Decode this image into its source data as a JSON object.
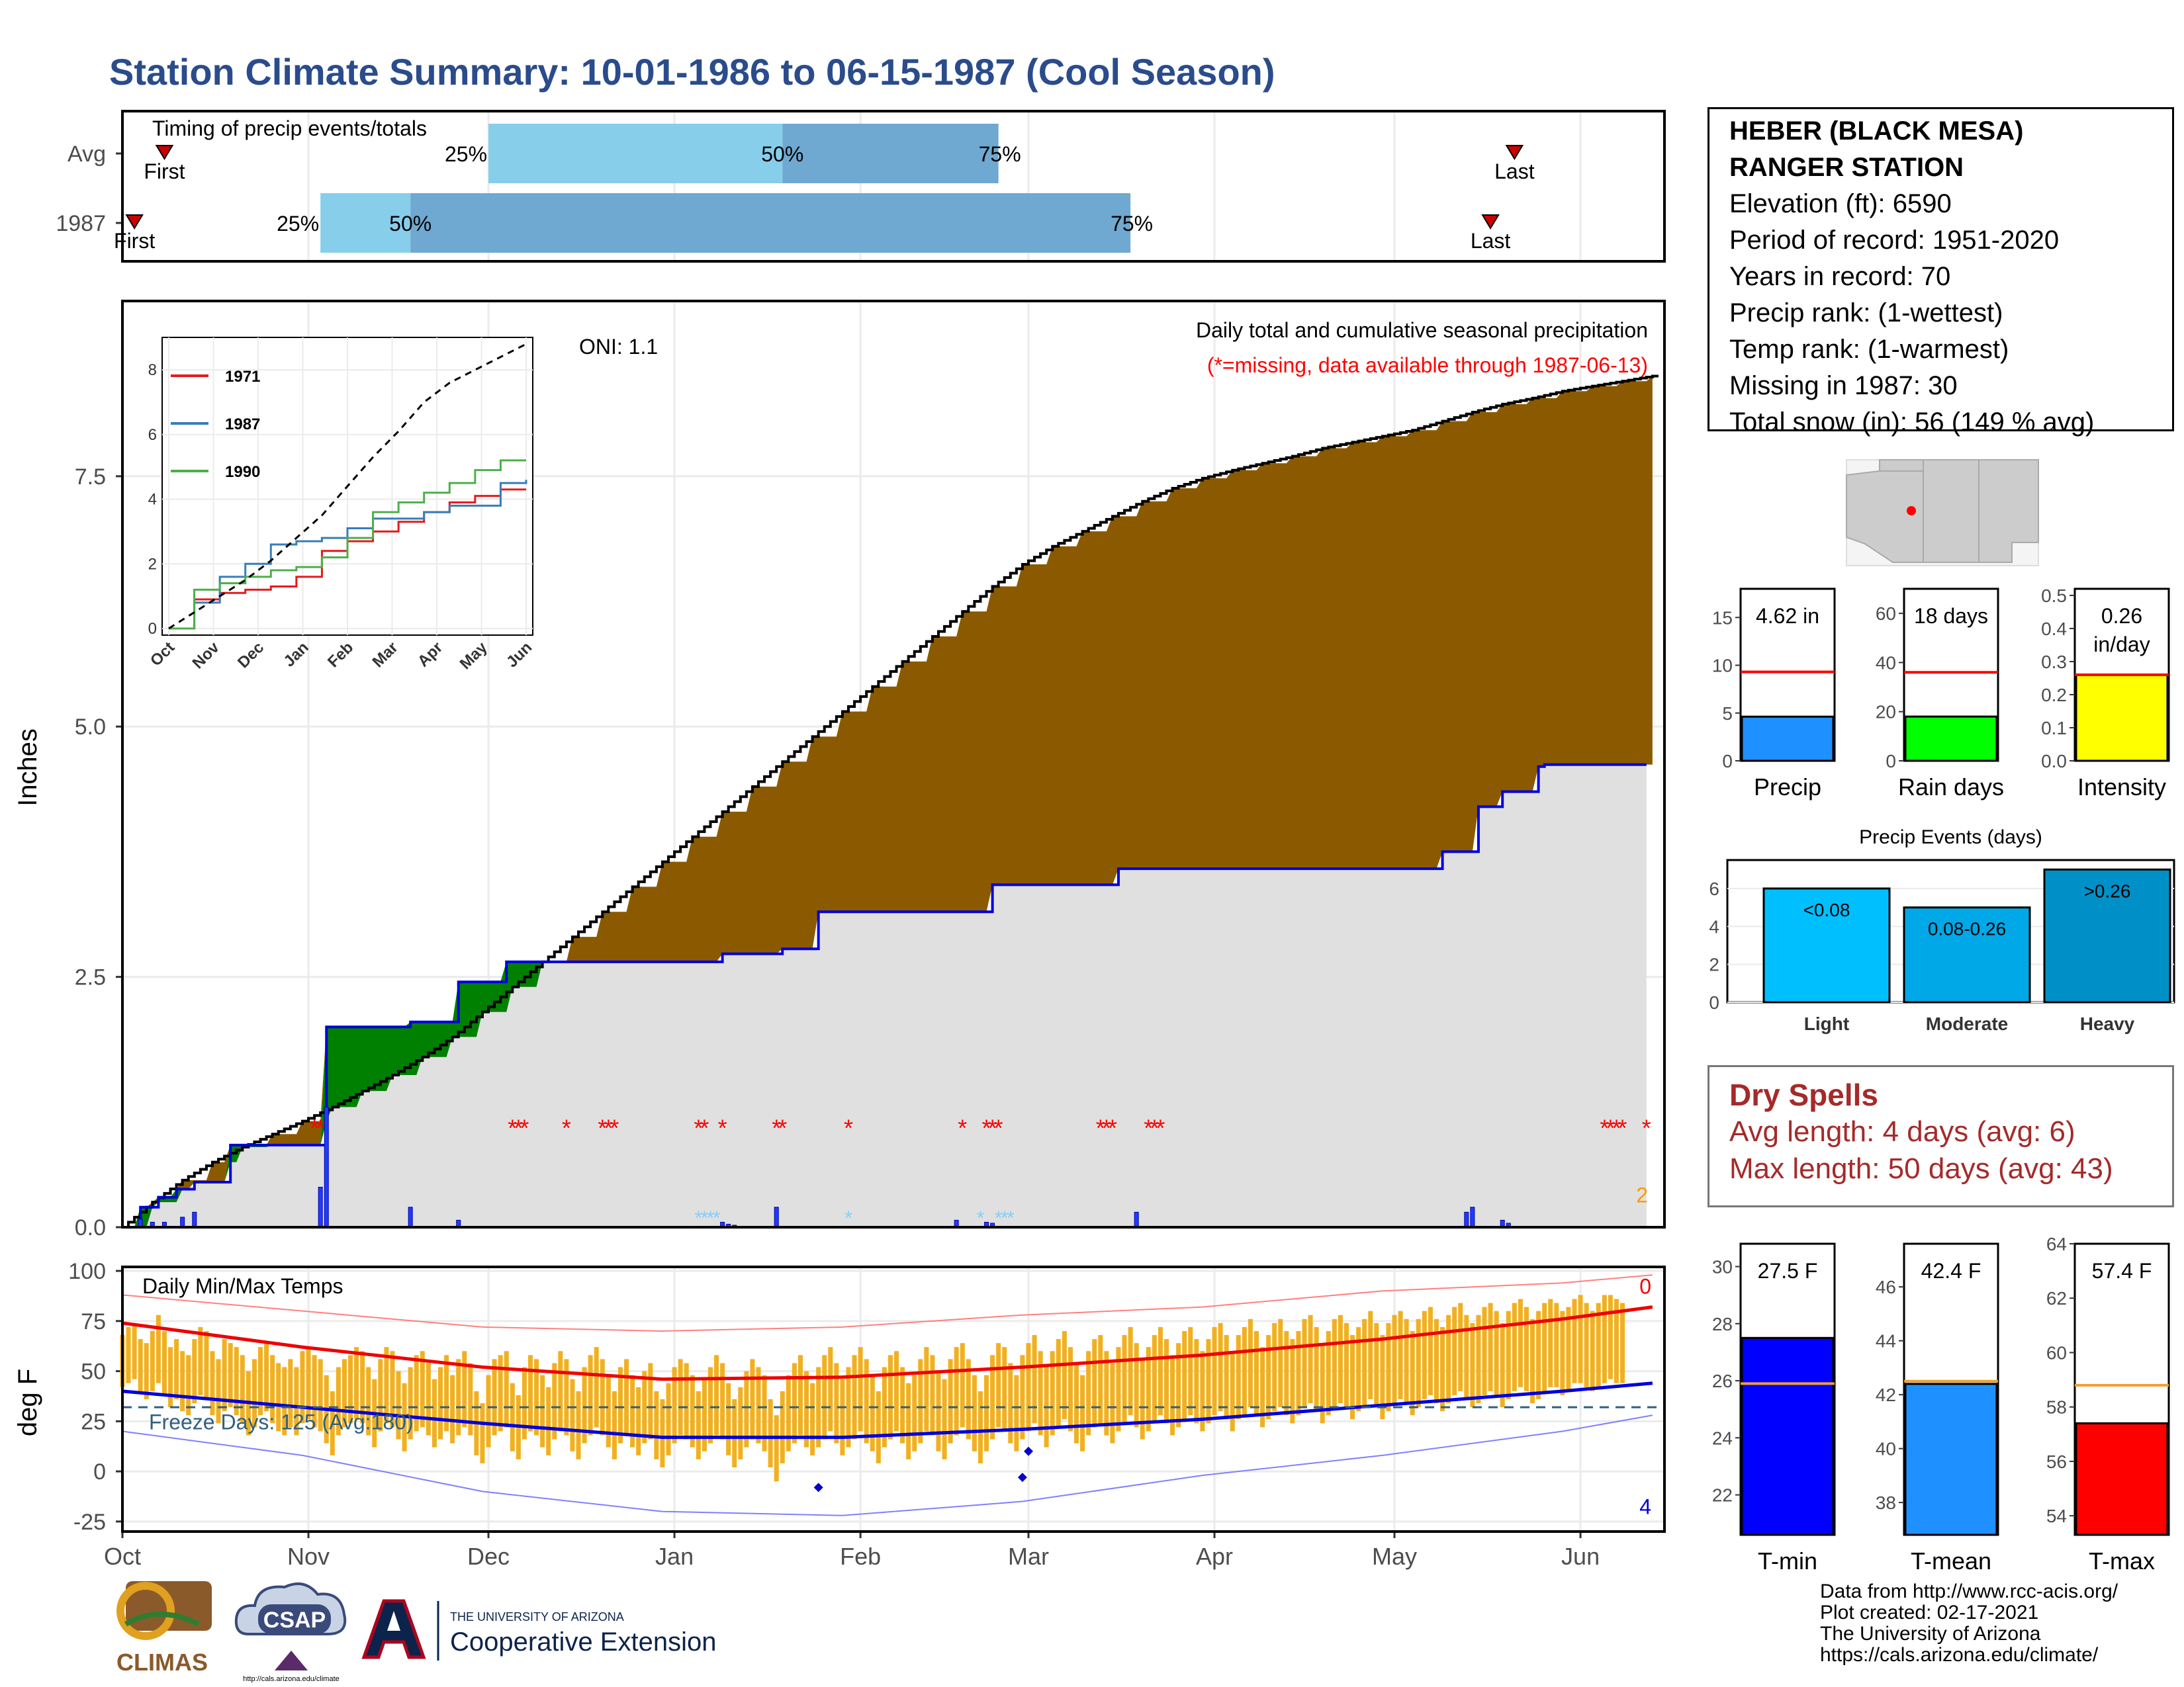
{
  "title": "Station Climate Summary: 10-01-1986 to 06-15-1987 (Cool Season)",
  "station": {
    "name_line1": "HEBER (BLACK MESA)",
    "name_line2": "RANGER STATION",
    "elevation": "Elevation (ft): 6590",
    "period": "Period of record: 1951-2020",
    "years": "Years in record: 70",
    "precip_rank": "Precip rank:  (1-wettest)",
    "temp_rank": "Temp rank:  (1-warmest)",
    "missing": "Missing in 1987: 30",
    "snow": "Total snow (in): 56 (149 % avg)"
  },
  "dry_spells": {
    "title": "Dry Spells",
    "avg": "Avg length: 4 days (avg: 6)",
    "max": "Max length: 50 days (avg: 43)"
  },
  "credits": {
    "line1": "Data from http://www.rcc-acis.org/",
    "line2": "Plot created: 02-17-2021",
    "line3": "The University of Arizona",
    "line4": "https://cals.arizona.edu/climate/"
  },
  "logos": {
    "climas": "CLIMAS",
    "csap": "CSAP",
    "csap_url": "http://cals.arizona.edu/climate",
    "ua_top": "THE UNIVERSITY OF ARIZONA",
    "ua_bottom": "Cooperative Extension"
  },
  "colors": {
    "avg_fill": "#8b5a00",
    "year_line": "#0000dd",
    "above_fill": "#008000",
    "missing": "#ff0000",
    "tmin": "#0000ff",
    "tmean": "#1e90ff",
    "tmax": "#ff0000",
    "precip_bar": "#1e90ff",
    "raindays_bar": "#00ff00",
    "intensity_bar": "#ffff00"
  },
  "chart_data": [
    {
      "type": "bar",
      "id": "timing",
      "title": "Timing of precip events/totals",
      "rows": [
        {
          "label": "Avg",
          "first": "10-08",
          "q25": "12-01",
          "q50": "01-19",
          "q75": "02-24",
          "last": "05-21"
        },
        {
          "label": "1987",
          "first": "10-03",
          "q25": "11-03",
          "q50": "11-18",
          "q75": "03-18",
          "last": "05-17"
        }
      ],
      "marker_labels": {
        "first": "First",
        "last": "Last",
        "q25": "25%",
        "q50": "50%",
        "q75": "75%"
      }
    },
    {
      "type": "area",
      "id": "main_precip",
      "title": "Daily total and cumulative seasonal precipitation",
      "subtitle": "(*=missing, data available through 1987-06-13)",
      "oni": "ONI: 1.1",
      "ylabel": "Inches",
      "yticks": [
        "0.0",
        "2.5",
        "5.0",
        "7.5"
      ],
      "ylim": [
        0,
        9.25
      ],
      "xticks": [
        "Oct",
        "Nov",
        "Dec",
        "Jan",
        "Feb",
        "Mar",
        "Apr",
        "May",
        "Jun"
      ],
      "avg_cumulative": {
        "day": [
          0,
          5,
          10,
          15,
          20,
          25,
          30,
          35,
          40,
          45,
          50,
          55,
          60,
          65,
          70,
          75,
          80,
          85,
          90,
          95,
          100,
          105,
          110,
          115,
          120,
          125,
          130,
          135,
          140,
          145,
          150,
          155,
          160,
          165,
          170,
          175,
          180,
          185,
          190,
          195,
          200,
          205,
          210,
          215,
          220,
          225,
          230,
          235,
          240,
          245,
          250,
          255
        ],
        "inches": [
          0.0,
          0.25,
          0.47,
          0.65,
          0.8,
          0.93,
          1.06,
          1.2,
          1.36,
          1.52,
          1.7,
          1.9,
          2.15,
          2.4,
          2.65,
          2.9,
          3.15,
          3.4,
          3.65,
          3.9,
          4.15,
          4.4,
          4.65,
          4.9,
          5.15,
          5.4,
          5.65,
          5.9,
          6.15,
          6.4,
          6.62,
          6.8,
          6.95,
          7.1,
          7.25,
          7.38,
          7.48,
          7.56,
          7.63,
          7.7,
          7.78,
          7.84,
          7.9,
          7.96,
          8.05,
          8.14,
          8.22,
          8.28,
          8.35,
          8.4,
          8.45,
          8.5
        ]
      },
      "year_cumulative": {
        "day": [
          0,
          3,
          6,
          9,
          12,
          18,
          25,
          33,
          34,
          47,
          48,
          48,
          56,
          58,
          64,
          75,
          100,
          110,
          115,
          116,
          145,
          165,
          166,
          200,
          220,
          225,
          226,
          230,
          233,
          236,
          237,
          254
        ],
        "inches": [
          0.0,
          0.2,
          0.3,
          0.38,
          0.45,
          0.82,
          0.82,
          0.82,
          2.0,
          2.0,
          2.05,
          2.05,
          2.45,
          2.45,
          2.65,
          2.65,
          2.73,
          2.78,
          2.78,
          3.15,
          3.42,
          3.42,
          3.58,
          3.58,
          3.75,
          3.75,
          4.2,
          4.35,
          4.35,
          4.6,
          4.62,
          4.62
        ]
      },
      "daily_bars": {
        "day": [
          3,
          5,
          7,
          10,
          12,
          33,
          34,
          48,
          56,
          100,
          101,
          102,
          109,
          139,
          144,
          145,
          169,
          224,
          225,
          230,
          231
        ],
        "inches": [
          0.08,
          0.05,
          0.05,
          0.1,
          0.15,
          0.4,
          1.2,
          0.2,
          0.07,
          0.05,
          0.03,
          0.02,
          0.2,
          0.07,
          0.05,
          0.04,
          0.15,
          0.15,
          0.2,
          0.07,
          0.04
        ]
      },
      "missing_days": [
        32,
        33,
        65,
        66,
        67,
        74,
        80,
        81,
        82,
        96,
        97,
        100,
        109,
        110,
        121,
        140,
        144,
        145,
        146,
        163,
        164,
        165,
        171,
        172,
        173,
        247,
        248,
        249,
        250,
        254
      ],
      "snow_days": [
        96,
        97,
        98,
        99,
        121,
        143,
        146,
        147,
        148
      ],
      "side_number": "2"
    },
    {
      "type": "line",
      "id": "inset",
      "series": [
        {
          "name": "1971",
          "color": "#e41a1c",
          "values": [
            0,
            0.9,
            1.1,
            1.2,
            1.3,
            1.6,
            2.4,
            2.7,
            3.0,
            3.3,
            3.6,
            3.9,
            4.1,
            4.3,
            4.3
          ]
        },
        {
          "name": "1987",
          "color": "#377eb8",
          "values": [
            0,
            0.8,
            1.6,
            2.0,
            2.6,
            2.7,
            2.8,
            3.1,
            3.4,
            3.4,
            3.6,
            3.8,
            3.8,
            4.5,
            4.6
          ]
        },
        {
          "name": "1990",
          "color": "#4daf4a",
          "values": [
            0,
            1.2,
            1.4,
            1.6,
            1.8,
            1.9,
            2.2,
            2.8,
            3.6,
            3.9,
            4.2,
            4.5,
            4.9,
            5.2,
            5.2
          ]
        },
        {
          "name": "avg",
          "color": "#000000",
          "values": [
            0,
            0.5,
            1.0,
            1.5,
            2.1,
            2.8,
            3.5,
            4.4,
            5.3,
            6.1,
            7.0,
            7.6,
            8.0,
            8.4,
            8.8
          ]
        }
      ],
      "xticks": [
        "Oct",
        "Nov",
        "Dec",
        "Jan",
        "Feb",
        "Mar",
        "Apr",
        "May",
        "Jun"
      ],
      "yticks": [
        "0",
        "2",
        "4",
        "6",
        "8"
      ],
      "ylim": [
        0,
        8.8
      ]
    },
    {
      "type": "line",
      "id": "temps",
      "title": "Daily Min/Max Temps",
      "ylabel": "deg F",
      "yticks": [
        "-25",
        "0",
        "25",
        "50",
        "75",
        "100"
      ],
      "ylim": [
        -30,
        102
      ],
      "xticks": [
        "Oct",
        "Nov",
        "Dec",
        "Jan",
        "Feb",
        "Mar",
        "Apr",
        "May",
        "Jun"
      ],
      "freeze_label": "Freeze Days: 125 (Avg:180)",
      "freeze_line": 32,
      "avg_max": {
        "day": [
          0,
          30,
          60,
          90,
          120,
          150,
          180,
          210,
          240,
          255
        ],
        "f": [
          74,
          62,
          52,
          46,
          47,
          52,
          58,
          66,
          76,
          82
        ]
      },
      "avg_min": {
        "day": [
          0,
          30,
          60,
          90,
          120,
          150,
          180,
          210,
          240,
          255
        ],
        "f": [
          40,
          32,
          24,
          17,
          17,
          21,
          26,
          33,
          40,
          44
        ]
      },
      "record_max": {
        "day": [
          0,
          30,
          60,
          90,
          120,
          150,
          180,
          210,
          240,
          255
        ],
        "f": [
          88,
          80,
          72,
          70,
          72,
          78,
          82,
          90,
          94,
          98
        ]
      },
      "record_min": {
        "day": [
          0,
          30,
          60,
          90,
          120,
          150,
          180,
          210,
          240,
          255
        ],
        "f": [
          20,
          8,
          -10,
          -20,
          -22,
          -15,
          -2,
          8,
          20,
          28
        ]
      },
      "daily_max": [
        68,
        72,
        74,
        66,
        64,
        70,
        78,
        70,
        62,
        66,
        60,
        58,
        66,
        72,
        70,
        60,
        56,
        66,
        64,
        62,
        58,
        50,
        56,
        62,
        64,
        58,
        54,
        52,
        56,
        52,
        60,
        62,
        58,
        56,
        48,
        40,
        52,
        56,
        58,
        62,
        60,
        52,
        46,
        56,
        62,
        60,
        50,
        44,
        52,
        58,
        60,
        54,
        46,
        52,
        58,
        48,
        56,
        60,
        54,
        40,
        34,
        48,
        56,
        58,
        60,
        44,
        38,
        52,
        58,
        56,
        48,
        42,
        54,
        60,
        56,
        46,
        40,
        52,
        58,
        62,
        56,
        48,
        40,
        52,
        56,
        48,
        42,
        50,
        54,
        40,
        36,
        44,
        52,
        56,
        54,
        48,
        40,
        46,
        52,
        58,
        54,
        44,
        36,
        42,
        50,
        56,
        52,
        48,
        36,
        28,
        40,
        48,
        54,
        58,
        50,
        44,
        52,
        58,
        62,
        54,
        46,
        52,
        58,
        62,
        56,
        48,
        40,
        52,
        58,
        60,
        52,
        44,
        48,
        56,
        62,
        58,
        50,
        46,
        56,
        62,
        64,
        56,
        48,
        40,
        48,
        58,
        64,
        62,
        54,
        48,
        58,
        64,
        68,
        60,
        52,
        60,
        66,
        70,
        62,
        54,
        48,
        60,
        66,
        68,
        60,
        54,
        62,
        68,
        72,
        64,
        56,
        62,
        68,
        72,
        66,
        58,
        64,
        70,
        72,
        66,
        60,
        66,
        72,
        74,
        68,
        60,
        68,
        72,
        76,
        70,
        62,
        68,
        74,
        76,
        70,
        66,
        70,
        76,
        78,
        72,
        64,
        70,
        76,
        78,
        74,
        68,
        72,
        76,
        80,
        74,
        68,
        74,
        78,
        80,
        76,
        70,
        76,
        80,
        82,
        76,
        72,
        78,
        82,
        84,
        78,
        74,
        78,
        82,
        84,
        80,
        74,
        80,
        84,
        86,
        82,
        76,
        80,
        84,
        86,
        84,
        80,
        82,
        86,
        88,
        84,
        80,
        84,
        88,
        88,
        86,
        84
      ],
      "daily_min": [
        42,
        44,
        46,
        40,
        36,
        40,
        44,
        38,
        32,
        36,
        30,
        28,
        34,
        38,
        36,
        28,
        24,
        30,
        32,
        28,
        24,
        18,
        22,
        28,
        30,
        24,
        20,
        18,
        22,
        18,
        24,
        26,
        22,
        20,
        14,
        8,
        18,
        22,
        24,
        26,
        24,
        18,
        12,
        20,
        24,
        22,
        16,
        10,
        16,
        20,
        22,
        18,
        12,
        16,
        20,
        14,
        18,
        22,
        18,
        8,
        4,
        12,
        18,
        20,
        22,
        10,
        6,
        16,
        20,
        18,
        12,
        8,
        16,
        20,
        18,
        10,
        6,
        14,
        18,
        22,
        18,
        12,
        6,
        14,
        18,
        12,
        8,
        14,
        16,
        6,
        2,
        8,
        14,
        18,
        16,
        12,
        6,
        10,
        14,
        18,
        16,
        8,
        2,
        6,
        12,
        16,
        14,
        10,
        2,
        -5,
        4,
        10,
        14,
        18,
        12,
        8,
        12,
        16,
        20,
        14,
        8,
        12,
        16,
        20,
        14,
        10,
        4,
        12,
        16,
        20,
        14,
        6,
        10,
        14,
        20,
        18,
        10,
        6,
        14,
        18,
        22,
        16,
        10,
        4,
        10,
        16,
        22,
        20,
        14,
        10,
        16,
        20,
        24,
        18,
        12,
        18,
        22,
        26,
        20,
        14,
        10,
        18,
        22,
        24,
        18,
        14,
        20,
        24,
        28,
        22,
        16,
        20,
        24,
        28,
        24,
        18,
        22,
        26,
        28,
        24,
        20,
        24,
        28,
        30,
        26,
        20,
        26,
        28,
        32,
        28,
        22,
        26,
        30,
        32,
        28,
        24,
        28,
        32,
        34,
        30,
        24,
        28,
        32,
        34,
        32,
        26,
        30,
        32,
        36,
        32,
        26,
        30,
        34,
        36,
        34,
        28,
        32,
        36,
        38,
        34,
        30,
        34,
        38,
        40,
        36,
        32,
        34,
        38,
        40,
        38,
        32,
        36,
        40,
        42,
        40,
        34,
        36,
        40,
        42,
        42,
        38,
        40,
        44,
        44,
        42,
        40,
        42,
        44,
        46,
        44,
        44
      ],
      "record_lows": [
        {
          "day": 116,
          "f": -8
        },
        {
          "day": 150,
          "f": -3
        },
        {
          "day": 151,
          "f": 10
        }
      ],
      "top_number": "0",
      "bottom_number": "4"
    },
    {
      "type": "bar",
      "id": "precip_summary",
      "panels": [
        {
          "name": "Precip",
          "label": "4.62 in",
          "value": 4.62,
          "avg": 9.3,
          "ylim": [
            0,
            18
          ],
          "yticks": [
            "0",
            "5",
            "10",
            "15"
          ],
          "color": "#1e90ff"
        },
        {
          "name": "Rain days",
          "label": "18 days",
          "value": 18,
          "avg": 36,
          "ylim": [
            0,
            70
          ],
          "yticks": [
            "0",
            "20",
            "40",
            "60"
          ],
          "color": "#00ff00"
        },
        {
          "name": "Intensity",
          "label_line1": "0.26",
          "label_line2": "in/day",
          "value": 0.26,
          "avg": 0.26,
          "ylim": [
            0,
            0.52
          ],
          "yticks": [
            "0.0",
            "0.1",
            "0.2",
            "0.3",
            "0.4",
            "0.5"
          ],
          "color": "#ffff00"
        }
      ]
    },
    {
      "type": "bar",
      "id": "precip_events",
      "title": "Precip Events (days)",
      "categories": [
        "Light",
        "Moderate",
        "Heavy"
      ],
      "bar_labels": [
        "<0.08",
        "0.08-0.26",
        ">0.26"
      ],
      "values": [
        6,
        5,
        7
      ],
      "ylim": [
        0,
        7.5
      ],
      "yticks": [
        "0",
        "2",
        "4",
        "6"
      ]
    },
    {
      "type": "bar",
      "id": "temp_summary",
      "panels": [
        {
          "name": "T-min",
          "label": "27.5 F",
          "value": 27.5,
          "avg": 25.9,
          "ylim": [
            20.6,
            30.8
          ],
          "yticks": [
            "22",
            "24",
            "26",
            "28",
            "30"
          ],
          "color": "#0000ff"
        },
        {
          "name": "T-mean",
          "label": "42.4 F",
          "value": 42.4,
          "avg": 42.5,
          "ylim": [
            36.8,
            47.6
          ],
          "yticks": [
            "38",
            "40",
            "42",
            "44",
            "46"
          ],
          "color": "#1e90ff"
        },
        {
          "name": "T-max",
          "label": "57.4 F",
          "value": 57.4,
          "avg": 58.8,
          "ylim": [
            53.3,
            64.0
          ],
          "yticks": [
            "54",
            "56",
            "58",
            "60",
            "62",
            "64"
          ],
          "color": "#ff0000"
        }
      ]
    }
  ]
}
